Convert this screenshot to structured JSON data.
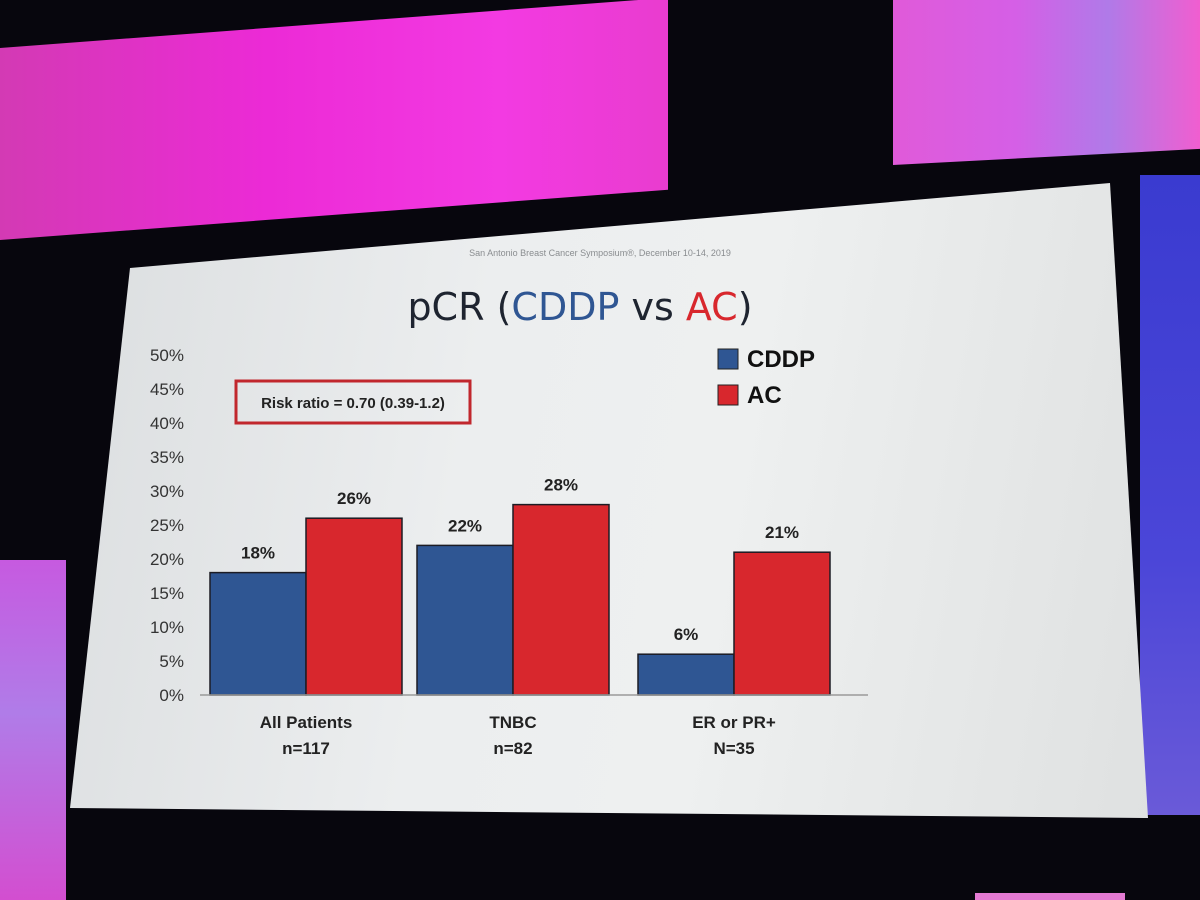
{
  "slide": {
    "header": "San Antonio Breast Cancer Symposium®, December 10-14, 2019",
    "title_prefix": "pCR (",
    "title_cddp": "CDDP",
    "title_vs": " vs ",
    "title_ac": "AC",
    "title_suffix": ")",
    "risk_ratio": "Risk ratio = 0.70 (0.39-1.2)"
  },
  "colors": {
    "cddp": "#2f5693",
    "ac": "#d8272d",
    "risk_box_border": "#c1272d"
  },
  "chart_data": {
    "type": "bar",
    "title": "pCR (CDDP vs AC)",
    "categories": [
      "All Patients",
      "TNBC",
      "ER or PR+"
    ],
    "category_sublabels": [
      "n=117",
      "n=82",
      "N=35"
    ],
    "series": [
      {
        "name": "CDDP",
        "values": [
          18,
          22,
          6
        ],
        "labels": [
          "18%",
          "22%",
          "6%"
        ]
      },
      {
        "name": "AC",
        "values": [
          26,
          28,
          21
        ],
        "labels": [
          "26%",
          "28%",
          "21%"
        ]
      }
    ],
    "ylim": [
      0,
      50
    ],
    "yticks": [
      "0%",
      "5%",
      "10%",
      "15%",
      "20%",
      "25%",
      "30%",
      "35%",
      "40%",
      "45%",
      "50%"
    ],
    "legend": "top-right",
    "annotations": [
      "Risk ratio = 0.70 (0.39-1.2)"
    ]
  }
}
